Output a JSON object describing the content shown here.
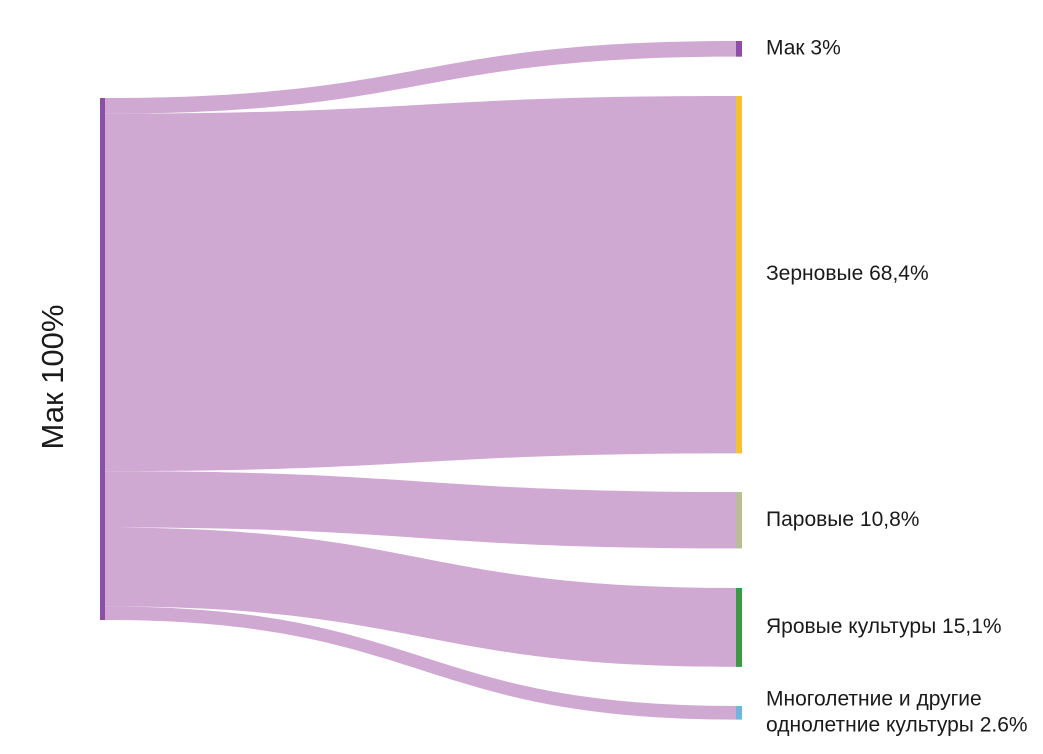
{
  "chart_data": {
    "type": "sankey",
    "source": {
      "label": "Мак 100%",
      "value": 100,
      "color": "#8e4fa3"
    },
    "link_color": "#d0a9d2",
    "targets": [
      {
        "label_lines": [
          "Мак 3%"
        ],
        "value": 3.0,
        "color": "#8e4fa3"
      },
      {
        "label_lines": [
          "Зерновые 68,4%"
        ],
        "value": 68.4,
        "color": "#f2c230"
      },
      {
        "label_lines": [
          "Паровые 10,8%"
        ],
        "value": 10.8,
        "color": "#b9bd9a"
      },
      {
        "label_lines": [
          "Яровые культуры 15,1%"
        ],
        "value": 15.1,
        "color": "#3a9a45"
      },
      {
        "label_lines": [
          "Многолетние и другие",
          "однолетние культуры 2.6%"
        ],
        "value": 2.6,
        "color": "#6fb6d8"
      }
    ]
  }
}
